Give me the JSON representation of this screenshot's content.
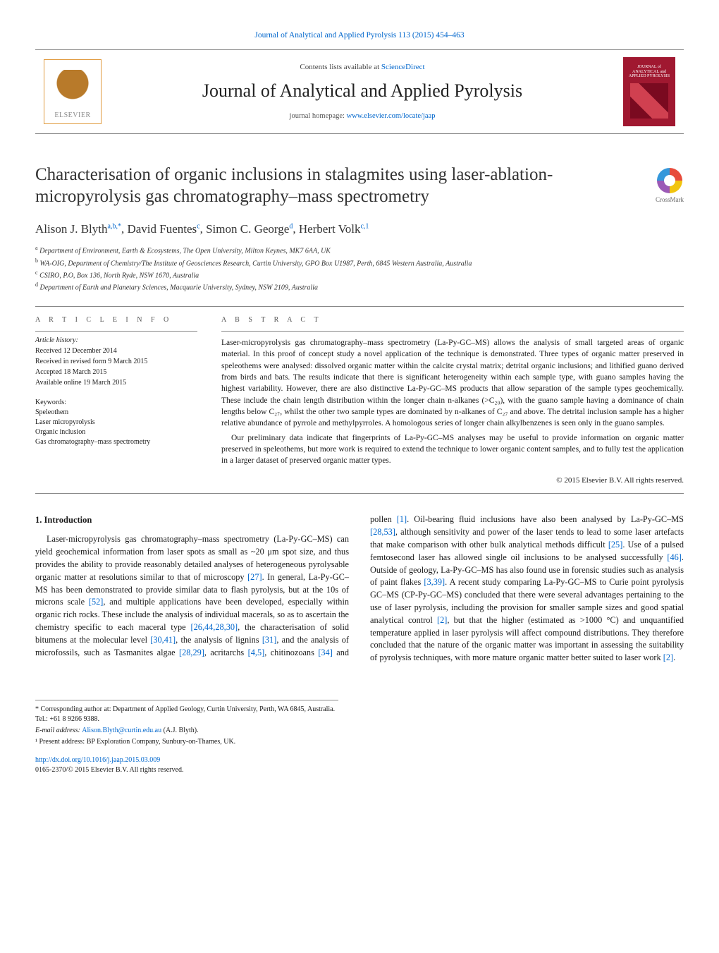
{
  "topCitation": {
    "text": "Journal of Analytical and Applied Pyrolysis 113 (2015) 454–463",
    "color": "#0066cc"
  },
  "header": {
    "publisherName": "ELSEVIER",
    "contentsPrefix": "Contents lists available at ",
    "contentsLink": "ScienceDirect",
    "journalName": "Journal of Analytical and Applied Pyrolysis",
    "homepagePrefix": "journal homepage: ",
    "homepageLink": "www.elsevier.com/locate/jaap",
    "coverTitle": "JOURNAL of ANALYTICAL and APPLIED PYROLYSIS"
  },
  "crossmark": "CrossMark",
  "title": "Characterisation of organic inclusions in stalagmites using laser-ablation-micropyrolysis gas chromatography–mass spectrometry",
  "authors": [
    {
      "name": "Alison J. Blyth",
      "marks": "a,b,*"
    },
    {
      "name": "David Fuentes",
      "marks": "c"
    },
    {
      "name": "Simon C. George",
      "marks": "d"
    },
    {
      "name": "Herbert Volk",
      "marks": "c,1"
    }
  ],
  "affiliations": [
    {
      "mark": "a",
      "text": "Department of Environment, Earth & Ecosystems, The Open University, Milton Keynes, MK7 6AA, UK"
    },
    {
      "mark": "b",
      "text": "WA-OIG, Department of Chemistry/The Institute of Geosciences Research, Curtin University, GPO Box U1987, Perth, 6845 Western Australia, Australia"
    },
    {
      "mark": "c",
      "text": "CSIRO, P.O, Box 136, North Ryde, NSW 1670, Australia"
    },
    {
      "mark": "d",
      "text": "Department of Earth and Planetary Sciences, Macquarie University, Sydney, NSW 2109, Australia"
    }
  ],
  "articleInfo": {
    "heading": "a r t i c l e   i n f o",
    "historyLabel": "Article history:",
    "history": [
      "Received 12 December 2014",
      "Received in revised form 9 March 2015",
      "Accepted 18 March 2015",
      "Available online 19 March 2015"
    ],
    "keywordsLabel": "Keywords:",
    "keywords": [
      "Speleothem",
      "Laser micropyrolysis",
      "Organic inclusion",
      "Gas chromatography–mass spectrometry"
    ]
  },
  "abstract": {
    "heading": "a b s t r a c t",
    "p1": "Laser-micropyrolysis gas chromatography–mass spectrometry (La-Py-GC–MS) allows the analysis of small targeted areas of organic material. In this proof of concept study a novel application of the technique is demonstrated. Three types of organic matter preserved in speleothems were analysed: dissolved organic matter within the calcite crystal matrix; detrital organic inclusions; and lithified guano derived from birds and bats. The results indicate that there is significant heterogeneity within each sample type, with guano samples having the highest variability. However, there are also distinctive La-Py-GC–MS products that allow separation of the sample types geochemically. These include the chain length distribution within the longer chain n-alkanes (>C₂₀), with the guano sample having a dominance of chain lengths below C₂₇, whilst the other two sample types are dominated by n-alkanes of C₂₇ and above. The detrital inclusion sample has a higher relative abundance of pyrrole and methylpyrroles. A homologous series of longer chain alkylbenzenes is seen only in the guano samples.",
    "p2": "Our preliminary data indicate that fingerprints of La-Py-GC–MS analyses may be useful to provide information on organic matter preserved in speleothems, but more work is required to extend the technique to lower organic content samples, and to fully test the application in a larger dataset of preserved organic matter types.",
    "copyright": "© 2015 Elsevier B.V. All rights reserved."
  },
  "introHeading": "1.  Introduction",
  "introBody": {
    "col1": "Laser-micropyrolysis gas chromatography–mass spectrometry (La-Py-GC–MS) can yield geochemical information from laser spots as small as ~20 μm spot size, and thus provides the ability to provide reasonably detailed analyses of heterogeneous pyrolysable organic matter at resolutions similar to that of microscopy [27]. In general, La-Py-GC–MS has been demonstrated to provide similar data to flash pyrolysis, but at the 10s of microns scale [52], and multiple applications have been developed, especially within organic rich rocks. These include the analysis of individual macerals, so as to ascertain the chemistry specific to each maceral type [26,44,28,30], the characterisation of solid bitumens at the ",
    "col2": "molecular level [30,41], the analysis of lignins [31], and the analysis of microfossils, such as Tasmanites algae [28,29], acritarchs [4,5], chitinozoans [34] and pollen [1]. Oil-bearing fluid inclusions have also been analysed by La-Py-GC–MS [28,53], although sensitivity and power of the laser tends to lead to some laser artefacts that make comparison with other bulk analytical methods difficult [25]. Use of a pulsed femtosecond laser has allowed single oil inclusions to be analysed successfully [46]. Outside of geology, La-Py-GC–MS has also found use in forensic studies such as analysis of paint flakes [3,39]. A recent study comparing La-Py-GC–MS to Curie point pyrolysis GC–MS (CP-Py-GC–MS) concluded that there were several advantages pertaining to the use of laser pyrolysis, including the provision for smaller sample sizes and good spatial analytical control [2], but that the higher (estimated as >1000 °C) and unquantified temperature applied in laser pyrolysis will affect compound distributions. They therefore concluded that the nature of the organic matter was important in assessing the suitability of pyrolysis techniques, with more mature organic matter better suited to laser work [2]."
  },
  "refLinks": {
    "r27": "[27]",
    "r52": "[52]",
    "r26": "[26,44,28,30]",
    "r30": "[30,41]",
    "r31": "[31]",
    "r28a": "[28,29]",
    "r4": "[4,5]",
    "r34": "[34]",
    "r1": "[1]",
    "r28b": "[28,53]",
    "r25": "[25]",
    "r46": "[46]",
    "r3": "[3,39]",
    "r2a": "[2]",
    "r2b": "[2]"
  },
  "footnotes": {
    "corresponding": "* Corresponding author at: Department of Applied Geology, Curtin University, Perth, WA 6845, Australia. Tel.: +61 8 9266 9388.",
    "emailLabel": "E-mail address: ",
    "email": "Alison.Blyth@curtin.edu.au",
    "emailSuffix": " (A.J. Blyth).",
    "present": "¹ Present address: BP Exploration Company, Sunbury-on-Thames, UK."
  },
  "doi": {
    "link": "http://dx.doi.org/10.1016/j.jaap.2015.03.009",
    "issn": "0165-2370/© 2015 Elsevier B.V. All rights reserved."
  },
  "palette": {
    "link": "#0066cc",
    "text": "#1a1a1a",
    "rule": "#888888",
    "coverBg": "#a01830",
    "elsevierOrange": "#e09a3e"
  },
  "typography": {
    "baseFont": "Georgia, 'Times New Roman', serif",
    "titleSize": 25,
    "journalNameSize": 26,
    "bodySize": 12.3,
    "abstractSize": 11.5,
    "affilSize": 10,
    "footnoteSize": 10
  },
  "layout": {
    "pageWidth": 1020,
    "pageHeight": 1351,
    "columns": 2,
    "columnGap": 30
  }
}
